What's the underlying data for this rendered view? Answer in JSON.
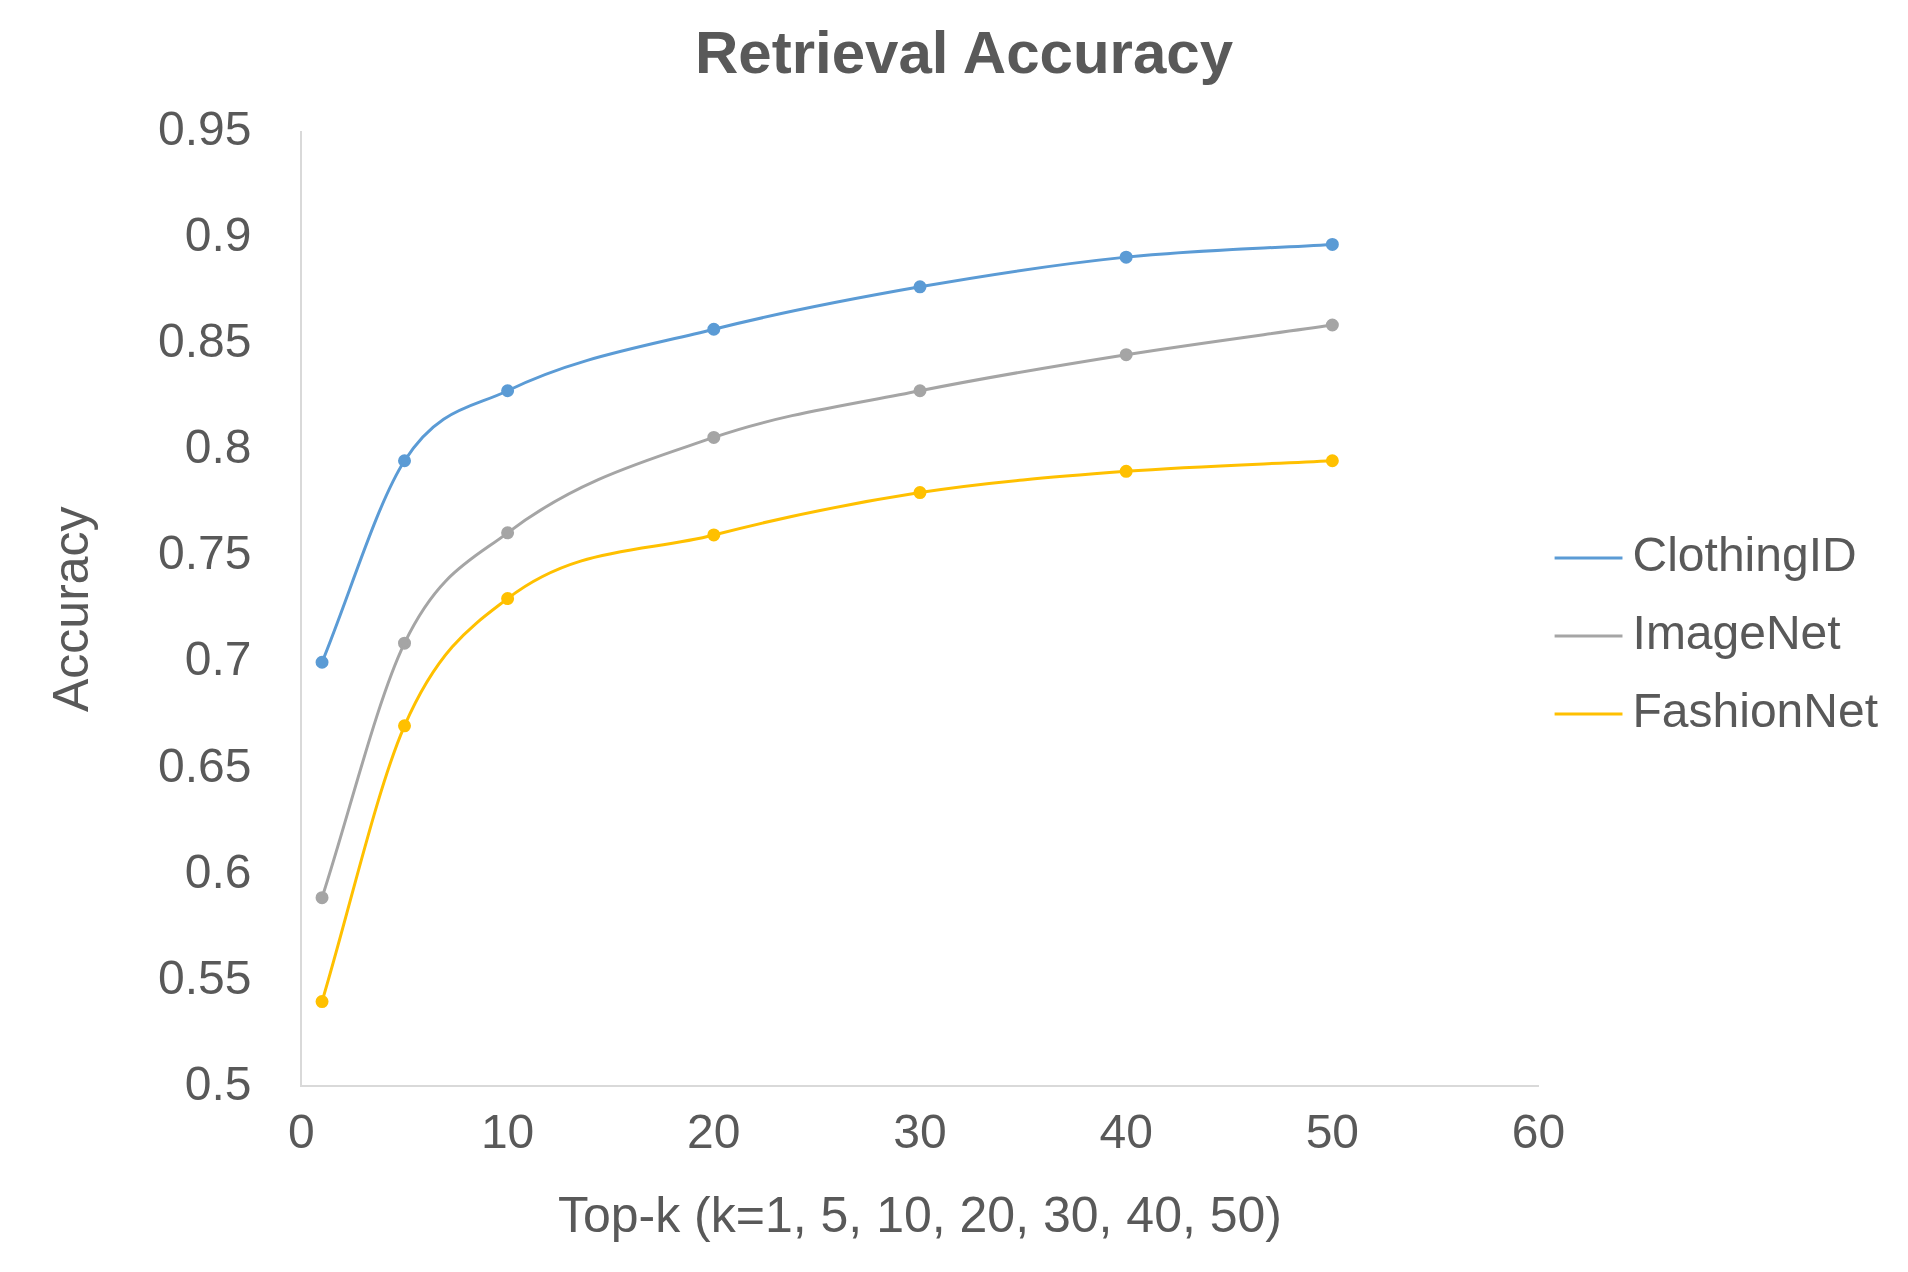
{
  "chart_data": {
    "type": "line",
    "title": "Retrieval Accuracy",
    "xlabel": "Top-k (k=1, 5, 10, 20, 30, 40, 50)",
    "ylabel": "Accuracy",
    "x": [
      1,
      5,
      10,
      20,
      30,
      40,
      50
    ],
    "series": [
      {
        "name": "ClothingID",
        "color": "#5b9bd5",
        "values": [
          0.7,
          0.795,
          0.828,
          0.857,
          0.877,
          0.891,
          0.897
        ]
      },
      {
        "name": "ImageNet",
        "color": "#a5a5a5",
        "values": [
          0.589,
          0.709,
          0.761,
          0.806,
          0.828,
          0.845,
          0.859
        ]
      },
      {
        "name": "FashionNet",
        "color": "#ffc000",
        "values": [
          0.54,
          0.67,
          0.73,
          0.76,
          0.78,
          0.79,
          0.795
        ]
      }
    ],
    "xlim": [
      0,
      60
    ],
    "xticks": [
      0,
      10,
      20,
      30,
      40,
      50,
      60
    ],
    "ylim": [
      0.5,
      0.95
    ],
    "yticks": [
      0.5,
      {
        "value": 0.55,
        "label": "0.55"
      },
      0.6,
      {
        "value": 0.65,
        "label": "0.65"
      },
      0.7,
      {
        "value": 0.75,
        "label": "0.75"
      },
      0.8,
      {
        "value": 0.85,
        "label": "0.85"
      },
      0.9,
      {
        "value": 0.95,
        "label": "0.95"
      }
    ],
    "grid": false,
    "legend": "right",
    "marker": "circle",
    "line_style": "solid"
  }
}
